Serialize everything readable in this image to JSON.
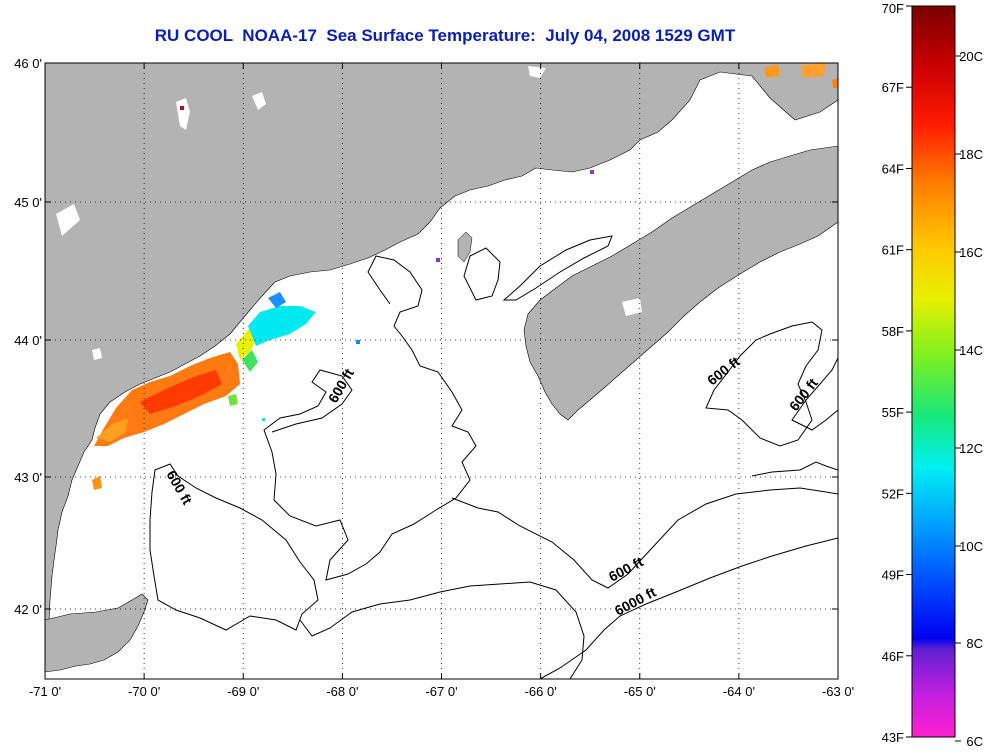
{
  "title": "RU COOL  NOAA-17  Sea Surface Temperature:  July 04, 2008 1529 GMT",
  "map": {
    "lon_ticks": [
      "-71 0'",
      "-70 0'",
      "-69 0'",
      "-68 0'",
      "-67 0'",
      "-66 0'",
      "-65 0'",
      "-64 0'",
      "-63 0'"
    ],
    "lat_ticks": [
      "46 0'",
      "45 0'",
      "44 0'",
      "43 0'",
      "42 0'"
    ],
    "contour_labels": [
      "600 ft",
      "600 ft",
      "600 ft",
      "600 ft",
      "600 ft",
      "6000 ft"
    ],
    "land_color": "#b3b3b3",
    "water_color": "#ffffff"
  },
  "colorbar": {
    "fahrenheit": [
      "70F",
      "67F",
      "64F",
      "61F",
      "58F",
      "55F",
      "52F",
      "49F",
      "46F",
      "43F"
    ],
    "celsius": [
      "20C",
      "18C",
      "16C",
      "14C",
      "12C",
      "10C",
      "8C",
      "6C"
    ]
  }
}
